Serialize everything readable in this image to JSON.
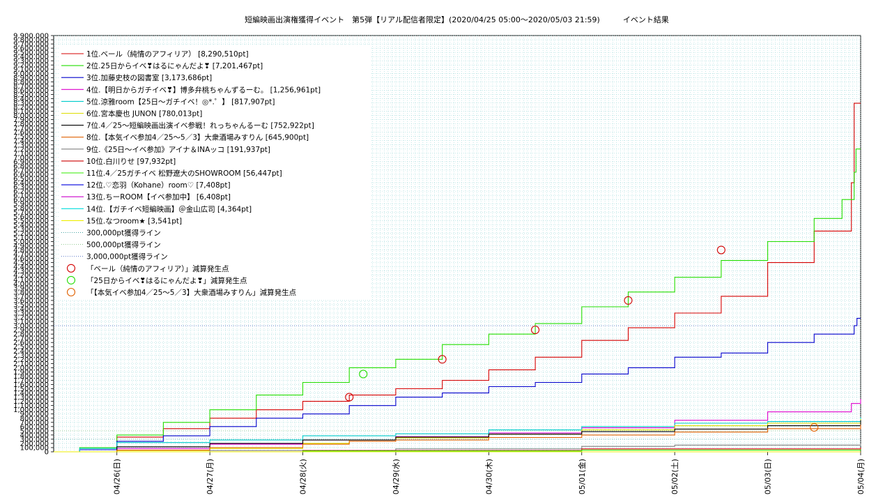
{
  "chart_data": {
    "type": "line",
    "title": "短編映画出演権獲得イベント　第5弾【リアル配信者限定】(2020/04/25 05:00～2020/05/03 21:59)　　　イベント結果",
    "xlabel": "",
    "ylabel": "",
    "ylim": [
      0,
      9900000
    ],
    "y_ticks": [
      0,
      100000,
      200000,
      300000,
      400000,
      500000,
      600000,
      700000,
      800000,
      900000,
      1000000,
      1100000,
      1200000,
      1300000,
      1400000,
      1500000,
      1600000,
      1700000,
      1800000,
      1900000,
      2000000,
      2100000,
      2200000,
      2300000,
      2400000,
      2500000,
      2600000,
      2700000,
      2800000,
      2900000,
      3000000,
      3100000,
      3200000,
      3300000,
      3400000,
      3500000,
      3600000,
      3700000,
      3800000,
      3900000,
      4000000,
      4100000,
      4200000,
      4300000,
      4400000,
      4500000,
      4600000,
      4700000,
      4800000,
      4900000,
      5000000,
      5100000,
      5200000,
      5300000,
      5400000,
      5500000,
      5600000,
      5700000,
      5800000,
      5900000,
      6000000,
      6100000,
      6200000,
      6300000,
      6400000,
      6500000,
      6600000,
      6700000,
      6800000,
      6900000,
      7000000,
      7100000,
      7200000,
      7300000,
      7400000,
      7500000,
      7600000,
      7700000,
      7800000,
      7900000,
      8000000,
      8100000,
      8200000,
      8300000,
      8400000,
      8500000,
      8600000,
      8700000,
      8800000,
      8900000,
      9000000,
      9100000,
      9200000,
      9300000,
      9400000,
      9500000,
      9600000,
      9700000,
      9800000,
      9900000
    ],
    "x_ticks": [
      {
        "label": "04/26(日)",
        "day": 1
      },
      {
        "label": "04/27(月)",
        "day": 2
      },
      {
        "label": "04/28(火)",
        "day": 3
      },
      {
        "label": "04/29(水)",
        "day": 4
      },
      {
        "label": "04/30(木)",
        "day": 5
      },
      {
        "label": "05/01(金)",
        "day": 6
      },
      {
        "label": "05/02(土)",
        "day": 7
      },
      {
        "label": "05/03(日)",
        "day": 8
      },
      {
        "label": "05/04(月)",
        "day": 9
      }
    ],
    "xlim_days": [
      0.32,
      9.0
    ],
    "grid": true,
    "legend_position": "top-left",
    "series": [
      {
        "name": "1位.ベール（純情のアフィリア） [8,290,510pt]",
        "color": "#d40000",
        "points": [
          [
            0.32,
            0
          ],
          [
            0.6,
            50000
          ],
          [
            1.0,
            350000
          ],
          [
            1.5,
            550000
          ],
          [
            2.0,
            800000
          ],
          [
            2.5,
            1000000
          ],
          [
            3.0,
            1200000
          ],
          [
            3.5,
            1350000
          ],
          [
            4.0,
            1500000
          ],
          [
            4.5,
            1700000
          ],
          [
            5.0,
            1950000
          ],
          [
            5.5,
            2250000
          ],
          [
            6.0,
            2650000
          ],
          [
            6.5,
            2950000
          ],
          [
            7.0,
            3300000
          ],
          [
            7.5,
            3700000
          ],
          [
            8.0,
            4500000
          ],
          [
            8.5,
            5250000
          ],
          [
            8.9,
            6400000
          ],
          [
            8.93,
            8290510
          ],
          [
            9.0,
            8290510
          ]
        ]
      },
      {
        "name": "2位.25日からイベ❣はるにゃんだよ❣ [7,201,467pt]",
        "color": "#22dd00",
        "points": [
          [
            0.32,
            0
          ],
          [
            0.6,
            100000
          ],
          [
            1.0,
            400000
          ],
          [
            1.5,
            700000
          ],
          [
            2.0,
            1000000
          ],
          [
            2.5,
            1350000
          ],
          [
            3.0,
            1650000
          ],
          [
            3.5,
            2000000
          ],
          [
            4.0,
            2200000
          ],
          [
            4.5,
            2550000
          ],
          [
            5.0,
            2800000
          ],
          [
            5.5,
            3050000
          ],
          [
            6.0,
            3450000
          ],
          [
            6.5,
            3800000
          ],
          [
            7.0,
            4150000
          ],
          [
            7.5,
            4550000
          ],
          [
            8.0,
            5000000
          ],
          [
            8.5,
            5550000
          ],
          [
            8.8,
            6000000
          ],
          [
            8.93,
            6650000
          ],
          [
            8.95,
            7201467
          ],
          [
            9.0,
            7201467
          ]
        ]
      },
      {
        "name": "3位.加藤史枝の図書室 [3,173,686pt]",
        "color": "#0000cc",
        "points": [
          [
            0.32,
            0
          ],
          [
            0.6,
            50000
          ],
          [
            1.0,
            250000
          ],
          [
            1.5,
            380000
          ],
          [
            2.0,
            600000
          ],
          [
            2.5,
            800000
          ],
          [
            3.0,
            900000
          ],
          [
            3.5,
            1100000
          ],
          [
            4.0,
            1300000
          ],
          [
            4.5,
            1400000
          ],
          [
            5.0,
            1550000
          ],
          [
            5.5,
            1650000
          ],
          [
            6.0,
            1850000
          ],
          [
            6.5,
            2000000
          ],
          [
            7.0,
            2250000
          ],
          [
            7.5,
            2350000
          ],
          [
            8.0,
            2600000
          ],
          [
            8.5,
            2800000
          ],
          [
            8.93,
            3000000
          ],
          [
            8.96,
            3173686
          ],
          [
            9.0,
            3173686
          ]
        ]
      },
      {
        "name": "4位.【明日からガチイベ❣】博多弁桃ちゃんずるーむ。 [1,256,961pt]",
        "color": "#dd00cc",
        "points": [
          [
            0.32,
            0
          ],
          [
            1.0,
            80000
          ],
          [
            2.0,
            180000
          ],
          [
            3.0,
            280000
          ],
          [
            4.0,
            360000
          ],
          [
            5.0,
            450000
          ],
          [
            6.0,
            570000
          ],
          [
            7.0,
            750000
          ],
          [
            8.0,
            950000
          ],
          [
            8.9,
            1150000
          ],
          [
            9.0,
            1256961
          ]
        ]
      },
      {
        "name": "5位.涼雅room【25日〜ガチイベ！◎*.゜】 [817,907pt]",
        "color": "#00cccc",
        "points": [
          [
            0.32,
            0
          ],
          [
            0.6,
            80000
          ],
          [
            1.0,
            220000
          ],
          [
            2.0,
            280000
          ],
          [
            3.0,
            380000
          ],
          [
            4.0,
            430000
          ],
          [
            5.0,
            520000
          ],
          [
            6.0,
            600000
          ],
          [
            7.0,
            680000
          ],
          [
            8.0,
            720000
          ],
          [
            9.0,
            817907
          ]
        ]
      },
      {
        "name": "6位.宮本慶也 JUNON [780,013pt]",
        "color": "#dddd00",
        "points": [
          [
            0.32,
            0
          ],
          [
            1.0,
            30000
          ],
          [
            2.0,
            80000
          ],
          [
            3.0,
            200000
          ],
          [
            3.5,
            280000
          ],
          [
            4.0,
            330000
          ],
          [
            5.0,
            420000
          ],
          [
            6.0,
            520000
          ],
          [
            7.0,
            620000
          ],
          [
            8.0,
            680000
          ],
          [
            9.0,
            780013
          ]
        ]
      },
      {
        "name": "7位.4／25〜短編映画出演イベ参戦！れっちゃんるーむ [752,922pt]",
        "color": "#000000",
        "points": [
          [
            0.32,
            0
          ],
          [
            1.0,
            120000
          ],
          [
            2.0,
            200000
          ],
          [
            3.0,
            280000
          ],
          [
            4.0,
            350000
          ],
          [
            5.0,
            420000
          ],
          [
            6.0,
            480000
          ],
          [
            7.0,
            540000
          ],
          [
            8.0,
            620000
          ],
          [
            9.0,
            752922
          ]
        ]
      },
      {
        "name": "8位.【本気イベ参加4／25〜5／3】大衆酒場みすりん [645,900pt]",
        "color": "#e06000",
        "points": [
          [
            0.32,
            0
          ],
          [
            1.0,
            40000
          ],
          [
            2.0,
            100000
          ],
          [
            3.0,
            180000
          ],
          [
            3.5,
            250000
          ],
          [
            4.0,
            280000
          ],
          [
            5.0,
            340000
          ],
          [
            6.0,
            400000
          ],
          [
            7.0,
            470000
          ],
          [
            8.0,
            550000
          ],
          [
            9.0,
            645900
          ]
        ]
      },
      {
        "name": "9位.《25日〜イベ参加》アイナ＆INAッコ [191,937pt]",
        "color": "#808080",
        "points": [
          [
            0.32,
            0
          ],
          [
            2.0,
            30000
          ],
          [
            4.0,
            70000
          ],
          [
            6.0,
            130000
          ],
          [
            7.0,
            160000
          ],
          [
            9.0,
            191937
          ]
        ]
      },
      {
        "name": "10位.白川りせ [97,932pt]",
        "color": "#cc0000",
        "points": [
          [
            0.32,
            0
          ],
          [
            3.0,
            30000
          ],
          [
            6.0,
            70000
          ],
          [
            9.0,
            97932
          ]
        ]
      },
      {
        "name": "11位.4／25ガチイベ 松野遼大のSHOWROOM [56,447pt]",
        "color": "#33ee00",
        "points": [
          [
            0.32,
            0
          ],
          [
            3.0,
            20000
          ],
          [
            6.0,
            40000
          ],
          [
            9.0,
            56447
          ]
        ]
      },
      {
        "name": "12位.♡恋羽（Kohane）room♡ [7,408pt]",
        "color": "#0000dd",
        "points": [
          [
            0.32,
            0
          ],
          [
            9.0,
            7408
          ]
        ]
      },
      {
        "name": "13位.ちーROOM【イベ参加中】 [6,408pt]",
        "color": "#cc00cc",
        "points": [
          [
            0.32,
            0
          ],
          [
            9.0,
            6408
          ]
        ]
      },
      {
        "name": "14位.【ガチイベ短編映画】＠金山広司 [4,364pt]",
        "color": "#00dddd",
        "points": [
          [
            0.32,
            0
          ],
          [
            9.0,
            4364
          ]
        ]
      },
      {
        "name": "15位.なつroom★ [3,541pt]",
        "color": "#eeee00",
        "points": [
          [
            0.32,
            0
          ],
          [
            9.0,
            3541
          ]
        ]
      }
    ],
    "lines": [
      {
        "name": "300,000pt獲得ライン",
        "color": "#40a0a0",
        "value": 300000
      },
      {
        "name": "500,000pt獲得ライン",
        "color": "#80c080",
        "value": 500000
      },
      {
        "name": "3,000,000pt獲得ライン",
        "color": "#4060c0",
        "value": 3000000
      }
    ],
    "markers": [
      {
        "name": "「ベール（純情のアフィリア）」減算発生点",
        "color": "#d40000",
        "points": [
          [
            3.5,
            1300000
          ],
          [
            4.5,
            2200000
          ],
          [
            5.5,
            2900000
          ],
          [
            6.5,
            3600000
          ],
          [
            7.5,
            4800000
          ]
        ]
      },
      {
        "name": "「25日からイベ❣はるにゃんだよ❣」減算発生点",
        "color": "#22dd00",
        "points": [
          [
            3.65,
            1850000
          ]
        ]
      },
      {
        "name": "「【本気イベ参加4／25〜5／3】大衆酒場みすりん」減算発生点",
        "color": "#e06000",
        "points": [
          [
            8.5,
            580000
          ]
        ]
      }
    ]
  }
}
